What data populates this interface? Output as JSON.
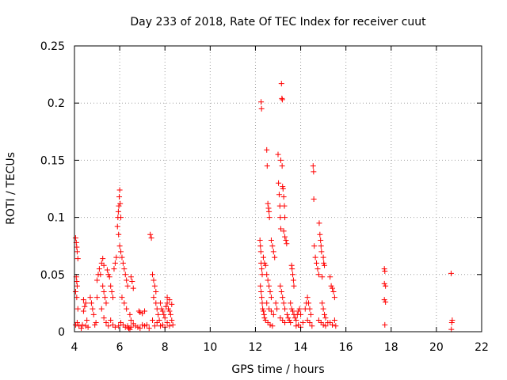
{
  "chart_data": {
    "type": "scatter",
    "title": "Day 233 of 2018, Rate Of TEC Index for receiver cuut",
    "xlabel": "GPS time / hours",
    "ylabel": "ROTI / TECUs",
    "xlim": [
      4,
      22
    ],
    "ylim": [
      0,
      0.25
    ],
    "xticks": [
      4,
      6,
      8,
      10,
      12,
      14,
      16,
      18,
      20,
      22
    ],
    "yticks": [
      0,
      0.05,
      0.1,
      0.15,
      0.2,
      0.25
    ],
    "xtick_labels": [
      "4",
      "6",
      "8",
      "10",
      "12",
      "14",
      "16",
      "18",
      "20",
      "22"
    ],
    "ytick_labels": [
      "0",
      "0.05",
      "0.1",
      "0.15",
      "0.2",
      "0.25"
    ],
    "grid": true,
    "marker": "+",
    "color": "#ff0000",
    "series": [
      {
        "name": "ROTI",
        "points": [
          [
            4.05,
            0.082
          ],
          [
            4.08,
            0.078
          ],
          [
            4.1,
            0.074
          ],
          [
            4.12,
            0.07
          ],
          [
            4.15,
            0.064
          ],
          [
            4.08,
            0.048
          ],
          [
            4.1,
            0.044
          ],
          [
            4.12,
            0.04
          ],
          [
            4.05,
            0.035
          ],
          [
            4.1,
            0.03
          ],
          [
            4.15,
            0.02
          ],
          [
            4.12,
            0.008
          ],
          [
            4.2,
            0.005
          ],
          [
            4.3,
            0.003
          ],
          [
            4.05,
            0.006
          ],
          [
            4.4,
            0.028
          ],
          [
            4.45,
            0.022
          ],
          [
            4.5,
            0.025
          ],
          [
            4.4,
            0.018
          ],
          [
            4.55,
            0.01
          ],
          [
            4.35,
            0.006
          ],
          [
            4.5,
            0.005
          ],
          [
            4.6,
            0.004
          ],
          [
            4.7,
            0.03
          ],
          [
            4.75,
            0.025
          ],
          [
            4.8,
            0.02
          ],
          [
            4.85,
            0.015
          ],
          [
            4.9,
            0.006
          ],
          [
            4.95,
            0.008
          ],
          [
            5.0,
            0.03
          ],
          [
            5.0,
            0.045
          ],
          [
            5.05,
            0.05
          ],
          [
            5.1,
            0.055
          ],
          [
            5.15,
            0.05
          ],
          [
            5.2,
            0.06
          ],
          [
            5.25,
            0.064
          ],
          [
            5.3,
            0.058
          ],
          [
            5.25,
            0.04
          ],
          [
            5.3,
            0.035
          ],
          [
            5.35,
            0.03
          ],
          [
            5.4,
            0.025
          ],
          [
            5.2,
            0.02
          ],
          [
            5.3,
            0.012
          ],
          [
            5.4,
            0.008
          ],
          [
            5.5,
            0.005
          ],
          [
            5.45,
            0.054
          ],
          [
            5.5,
            0.05
          ],
          [
            5.55,
            0.048
          ],
          [
            5.6,
            0.04
          ],
          [
            5.65,
            0.035
          ],
          [
            5.7,
            0.03
          ],
          [
            5.6,
            0.01
          ],
          [
            5.7,
            0.006
          ],
          [
            5.8,
            0.004
          ],
          [
            5.75,
            0.055
          ],
          [
            5.8,
            0.06
          ],
          [
            5.85,
            0.065
          ],
          [
            5.9,
            0.092
          ],
          [
            5.92,
            0.1
          ],
          [
            5.94,
            0.105
          ],
          [
            5.96,
            0.11
          ],
          [
            5.98,
            0.118
          ],
          [
            6.0,
            0.124
          ],
          [
            6.02,
            0.112
          ],
          [
            6.05,
            0.1
          ],
          [
            5.95,
            0.085
          ],
          [
            6.0,
            0.075
          ],
          [
            6.05,
            0.07
          ],
          [
            6.1,
            0.065
          ],
          [
            6.15,
            0.06
          ],
          [
            6.2,
            0.055
          ],
          [
            6.25,
            0.05
          ],
          [
            6.3,
            0.045
          ],
          [
            6.35,
            0.04
          ],
          [
            5.95,
            0.005
          ],
          [
            6.05,
            0.008
          ],
          [
            6.15,
            0.006
          ],
          [
            6.25,
            0.004
          ],
          [
            6.35,
            0.005
          ],
          [
            6.4,
            0.003
          ],
          [
            6.45,
            0.002
          ],
          [
            6.5,
            0.004
          ],
          [
            6.1,
            0.03
          ],
          [
            6.2,
            0.025
          ],
          [
            6.3,
            0.02
          ],
          [
            6.45,
            0.015
          ],
          [
            6.5,
            0.048
          ],
          [
            6.55,
            0.044
          ],
          [
            6.6,
            0.038
          ],
          [
            6.5,
            0.01
          ],
          [
            6.6,
            0.007
          ],
          [
            6.7,
            0.005
          ],
          [
            6.8,
            0.004
          ],
          [
            6.9,
            0.003
          ],
          [
            6.85,
            0.018
          ],
          [
            6.9,
            0.017
          ],
          [
            7.0,
            0.016
          ],
          [
            7.1,
            0.018
          ],
          [
            7.0,
            0.006
          ],
          [
            7.1,
            0.005
          ],
          [
            7.2,
            0.006
          ],
          [
            7.3,
            0.003
          ],
          [
            7.35,
            0.085
          ],
          [
            7.4,
            0.082
          ],
          [
            7.45,
            0.05
          ],
          [
            7.5,
            0.045
          ],
          [
            7.55,
            0.04
          ],
          [
            7.6,
            0.035
          ],
          [
            7.5,
            0.03
          ],
          [
            7.6,
            0.025
          ],
          [
            7.65,
            0.02
          ],
          [
            7.7,
            0.015
          ],
          [
            7.45,
            0.01
          ],
          [
            7.55,
            0.005
          ],
          [
            7.65,
            0.008
          ],
          [
            7.75,
            0.01
          ],
          [
            7.8,
            0.025
          ],
          [
            7.85,
            0.02
          ],
          [
            7.9,
            0.018
          ],
          [
            7.95,
            0.015
          ],
          [
            8.0,
            0.012
          ],
          [
            8.05,
            0.022
          ],
          [
            8.1,
            0.025
          ],
          [
            8.15,
            0.02
          ],
          [
            8.2,
            0.018
          ],
          [
            8.25,
            0.015
          ],
          [
            8.3,
            0.024
          ],
          [
            7.8,
            0.005
          ],
          [
            7.9,
            0.006
          ],
          [
            8.0,
            0.004
          ],
          [
            8.1,
            0.008
          ],
          [
            8.2,
            0.005
          ],
          [
            8.3,
            0.01
          ],
          [
            8.35,
            0.006
          ],
          [
            8.1,
            0.03
          ],
          [
            8.2,
            0.028
          ],
          [
            12.2,
            0.08
          ],
          [
            12.22,
            0.075
          ],
          [
            12.24,
            0.07
          ],
          [
            12.25,
            0.06
          ],
          [
            12.28,
            0.055
          ],
          [
            12.3,
            0.05
          ],
          [
            12.22,
            0.04
          ],
          [
            12.25,
            0.035
          ],
          [
            12.28,
            0.03
          ],
          [
            12.3,
            0.025
          ],
          [
            12.32,
            0.02
          ],
          [
            12.35,
            0.018
          ],
          [
            12.38,
            0.015
          ],
          [
            12.4,
            0.012
          ],
          [
            12.25,
            0.201
          ],
          [
            12.27,
            0.195
          ],
          [
            12.35,
            0.065
          ],
          [
            12.4,
            0.06
          ],
          [
            12.45,
            0.058
          ],
          [
            12.5,
            0.05
          ],
          [
            12.5,
            0.159
          ],
          [
            12.52,
            0.145
          ],
          [
            12.55,
            0.112
          ],
          [
            12.58,
            0.108
          ],
          [
            12.6,
            0.105
          ],
          [
            12.62,
            0.1
          ],
          [
            12.55,
            0.045
          ],
          [
            12.6,
            0.04
          ],
          [
            12.65,
            0.035
          ],
          [
            12.7,
            0.03
          ],
          [
            12.5,
            0.025
          ],
          [
            12.6,
            0.02
          ],
          [
            12.7,
            0.018
          ],
          [
            12.8,
            0.015
          ],
          [
            12.45,
            0.01
          ],
          [
            12.55,
            0.008
          ],
          [
            12.65,
            0.006
          ],
          [
            12.75,
            0.005
          ],
          [
            12.7,
            0.08
          ],
          [
            12.75,
            0.075
          ],
          [
            12.8,
            0.07
          ],
          [
            12.85,
            0.065
          ],
          [
            12.9,
            0.025
          ],
          [
            12.95,
            0.02
          ],
          [
            13.0,
            0.155
          ],
          [
            13.02,
            0.13
          ],
          [
            13.05,
            0.12
          ],
          [
            13.08,
            0.11
          ],
          [
            13.1,
            0.1
          ],
          [
            13.12,
            0.09
          ],
          [
            13.15,
            0.217
          ],
          [
            13.17,
            0.204
          ],
          [
            13.19,
            0.203
          ],
          [
            13.12,
            0.15
          ],
          [
            13.18,
            0.145
          ],
          [
            13.2,
            0.127
          ],
          [
            13.22,
            0.125
          ],
          [
            13.25,
            0.118
          ],
          [
            13.28,
            0.11
          ],
          [
            13.3,
            0.1
          ],
          [
            13.25,
            0.088
          ],
          [
            13.3,
            0.083
          ],
          [
            13.35,
            0.08
          ],
          [
            13.38,
            0.077
          ],
          [
            13.1,
            0.04
          ],
          [
            13.15,
            0.035
          ],
          [
            13.2,
            0.03
          ],
          [
            13.25,
            0.025
          ],
          [
            13.3,
            0.02
          ],
          [
            13.1,
            0.012
          ],
          [
            13.2,
            0.01
          ],
          [
            13.3,
            0.008
          ],
          [
            13.4,
            0.015
          ],
          [
            13.45,
            0.012
          ],
          [
            13.5,
            0.01
          ],
          [
            13.55,
            0.008
          ],
          [
            13.6,
            0.058
          ],
          [
            13.62,
            0.055
          ],
          [
            13.65,
            0.05
          ],
          [
            13.68,
            0.045
          ],
          [
            13.7,
            0.04
          ],
          [
            13.55,
            0.025
          ],
          [
            13.6,
            0.02
          ],
          [
            13.65,
            0.018
          ],
          [
            13.7,
            0.015
          ],
          [
            13.75,
            0.012
          ],
          [
            13.8,
            0.01
          ],
          [
            13.85,
            0.015
          ],
          [
            13.9,
            0.018
          ],
          [
            13.95,
            0.02
          ],
          [
            14.0,
            0.015
          ],
          [
            13.8,
            0.005
          ],
          [
            13.9,
            0.006
          ],
          [
            14.0,
            0.004
          ],
          [
            14.1,
            0.008
          ],
          [
            14.2,
            0.02
          ],
          [
            14.25,
            0.025
          ],
          [
            14.3,
            0.03
          ],
          [
            14.35,
            0.025
          ],
          [
            14.4,
            0.02
          ],
          [
            14.45,
            0.015
          ],
          [
            14.3,
            0.01
          ],
          [
            14.4,
            0.008
          ],
          [
            14.5,
            0.005
          ],
          [
            14.55,
            0.145
          ],
          [
            14.57,
            0.14
          ],
          [
            14.58,
            0.116
          ],
          [
            14.6,
            0.075
          ],
          [
            14.65,
            0.065
          ],
          [
            14.7,
            0.06
          ],
          [
            14.75,
            0.055
          ],
          [
            14.8,
            0.05
          ],
          [
            14.82,
            0.095
          ],
          [
            14.85,
            0.085
          ],
          [
            14.88,
            0.08
          ],
          [
            14.9,
            0.075
          ],
          [
            14.92,
            0.07
          ],
          [
            14.95,
            0.048
          ],
          [
            15.0,
            0.065
          ],
          [
            15.02,
            0.06
          ],
          [
            15.05,
            0.058
          ],
          [
            14.95,
            0.025
          ],
          [
            15.0,
            0.02
          ],
          [
            15.05,
            0.015
          ],
          [
            15.1,
            0.012
          ],
          [
            14.8,
            0.01
          ],
          [
            14.9,
            0.008
          ],
          [
            15.0,
            0.006
          ],
          [
            15.1,
            0.005
          ],
          [
            15.2,
            0.008
          ],
          [
            15.3,
            0.048
          ],
          [
            15.35,
            0.04
          ],
          [
            15.4,
            0.038
          ],
          [
            15.45,
            0.035
          ],
          [
            15.5,
            0.03
          ],
          [
            15.3,
            0.008
          ],
          [
            15.4,
            0.006
          ],
          [
            15.5,
            0.01
          ],
          [
            15.55,
            0.005
          ],
          [
            17.7,
            0.055
          ],
          [
            17.72,
            0.053
          ],
          [
            17.7,
            0.042
          ],
          [
            17.75,
            0.04
          ],
          [
            17.7,
            0.028
          ],
          [
            17.75,
            0.026
          ],
          [
            17.72,
            0.006
          ],
          [
            20.65,
            0.051
          ],
          [
            20.7,
            0.01
          ],
          [
            20.68,
            0.008
          ],
          [
            20.66,
            0.002
          ]
        ]
      }
    ]
  }
}
